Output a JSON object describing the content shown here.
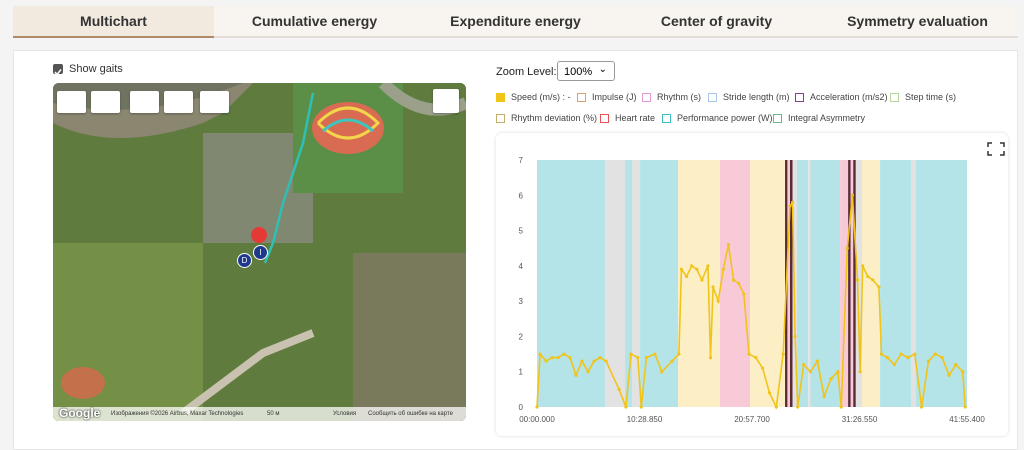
{
  "tabs": [
    "Multichart",
    "Cumulative energy",
    "Expenditure energy",
    "Center of gravity",
    "Symmetry evaluation"
  ],
  "show_gaits": "Show gaits",
  "map": {
    "markers": [
      "D",
      "I"
    ],
    "google": "Google",
    "attribution": "Изображения ©2026 Airbus, Maxar Technologies",
    "scale": "50 м",
    "terms": "Условия",
    "report": "Сообщить об ошибке на карте"
  },
  "zoom": {
    "label": "Zoom Level:",
    "value": "100%"
  },
  "chart_data": {
    "type": "line",
    "legend": [
      {
        "name": "Impulse (J)",
        "color": "#d4a46a"
      },
      {
        "name": "Rhythm (s)",
        "color": "#e89ad6"
      },
      {
        "name": "Stride length (m)",
        "color": "#a9c6e6"
      },
      {
        "name": "Acceleration (m/s2)",
        "color": "#8e3c8e"
      },
      {
        "name": "Step time (s)",
        "color": "#b5d69c"
      },
      {
        "name": "Rhythm deviation (%)",
        "color": "#c4ad6c"
      },
      {
        "name": "Heart rate",
        "color": "#e05454"
      },
      {
        "name": "Performance power (W)",
        "color": "#3fbfbf"
      },
      {
        "name": "Integral Asymmetry",
        "color": "#5fbf82"
      }
    ],
    "x": [
      0,
      18,
      53,
      88,
      123,
      158,
      193,
      228,
      263,
      299,
      334,
      369,
      404,
      480,
      520,
      550,
      590,
      610,
      640,
      690,
      730,
      790,
      830,
      845,
      875,
      905,
      935,
      965,
      1000,
      1015,
      1030,
      1060,
      1090,
      1120,
      1150,
      1180,
      1210,
      1240,
      1280,
      1320,
      1360,
      1400,
      1440,
      1480,
      1495,
      1510,
      1525,
      1560,
      1600,
      1640,
      1680,
      1720,
      1760,
      1780,
      1815,
      1845,
      1875,
      1890,
      1905,
      1935,
      1965,
      2000,
      2015,
      2050,
      2090,
      2130,
      2170,
      2210,
      2250,
      2290,
      2330,
      2370,
      2410,
      2450,
      2490,
      2505
    ],
    "series": [
      {
        "name": "Speed (m/s) : -",
        "color": "#f0c419",
        "values": [
          0,
          1.5,
          1.3,
          1.4,
          1.4,
          1.5,
          1.4,
          0.9,
          1.3,
          1.0,
          1.3,
          1.4,
          1.3,
          0.5,
          0,
          1.5,
          1.4,
          0,
          1.4,
          1.5,
          1.0,
          1.3,
          1.5,
          3.9,
          3.7,
          4.0,
          3.9,
          3.6,
          4.0,
          1.4,
          3.4,
          3.0,
          3.9,
          4.6,
          3.6,
          3.5,
          3.2,
          1.5,
          1.4,
          1.1,
          0.4,
          0,
          1.5,
          5.7,
          5.8,
          2.0,
          0,
          1.2,
          1.0,
          1.3,
          0.3,
          0.8,
          1.0,
          0,
          4.5,
          6.0,
          3.6,
          1.0,
          4.0,
          3.7,
          3.6,
          3.4,
          1.5,
          1.4,
          1.2,
          1.5,
          1.4,
          1.5,
          0,
          1.3,
          1.5,
          1.4,
          0.9,
          1.2,
          1.0,
          0
        ]
      }
    ],
    "bands": [
      {
        "start": 0,
        "end": 398,
        "color": "#b4e4e8"
      },
      {
        "start": 398,
        "end": 515,
        "color": "#e2e2e2"
      },
      {
        "start": 515,
        "end": 556,
        "color": "#b4e4e8"
      },
      {
        "start": 556,
        "end": 603,
        "color": "#e2e2e2"
      },
      {
        "start": 603,
        "end": 825,
        "color": "#b4e4e8"
      },
      {
        "start": 825,
        "end": 1070,
        "color": "#fcefc6"
      },
      {
        "start": 1070,
        "end": 1246,
        "color": "#f8cad8"
      },
      {
        "start": 1246,
        "end": 1451,
        "color": "#fcefc6"
      },
      {
        "start": 1451,
        "end": 1465,
        "color": "#5a2a35"
      },
      {
        "start": 1465,
        "end": 1480,
        "color": "#f8cad8"
      },
      {
        "start": 1480,
        "end": 1495,
        "color": "#5a2a35"
      },
      {
        "start": 1495,
        "end": 1521,
        "color": "#e2e2e2"
      },
      {
        "start": 1521,
        "end": 1586,
        "color": "#b4e4e8"
      },
      {
        "start": 1586,
        "end": 1600,
        "color": "#e2e2e2"
      },
      {
        "start": 1600,
        "end": 1773,
        "color": "#b4e4e8"
      },
      {
        "start": 1773,
        "end": 1820,
        "color": "#f8cad8"
      },
      {
        "start": 1820,
        "end": 1835,
        "color": "#5a2a35"
      },
      {
        "start": 1835,
        "end": 1850,
        "color": "#f8cad8"
      },
      {
        "start": 1850,
        "end": 1865,
        "color": "#5a2a35"
      },
      {
        "start": 1865,
        "end": 1901,
        "color": "#e2e2e2"
      },
      {
        "start": 1901,
        "end": 2007,
        "color": "#fcefc6"
      },
      {
        "start": 2007,
        "end": 2190,
        "color": "#b4e4e8"
      },
      {
        "start": 2190,
        "end": 2215,
        "color": "#e2e2e2"
      },
      {
        "start": 2215,
        "end": 2515.4,
        "color": "#b4e4e8"
      }
    ],
    "xlim": [
      0,
      2515.4
    ],
    "xticks": [
      {
        "value": 0,
        "label": "00:00.000"
      },
      {
        "value": 628.85,
        "label": "10:28.850"
      },
      {
        "value": 1257.7,
        "label": "20:57.700"
      },
      {
        "value": 1886.55,
        "label": "31:26.550"
      },
      {
        "value": 2515.4,
        "label": "41:55.400"
      }
    ],
    "ylim": [
      0,
      7
    ],
    "yticks": [
      0,
      1,
      2,
      3,
      4,
      5,
      6,
      7
    ]
  }
}
